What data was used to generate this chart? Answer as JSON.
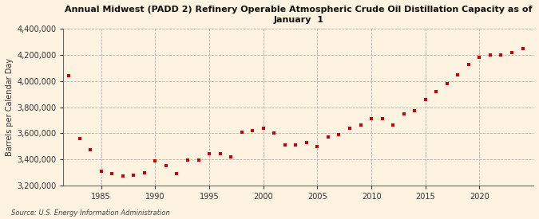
{
  "title": "Annual Midwest (PADD 2) Refinery Operable Atmospheric Crude Oil Distillation Capacity as of\nJanuary  1",
  "ylabel": "Barrels per Calendar Day",
  "source": "Source: U.S. Energy Information Administration",
  "background_color": "#fdf3e0",
  "plot_bg_color": "#fdf3e0",
  "marker_color": "#cc0000",
  "years": [
    1982,
    1983,
    1984,
    1985,
    1986,
    1987,
    1988,
    1989,
    1990,
    1991,
    1992,
    1993,
    1994,
    1995,
    1996,
    1997,
    1998,
    1999,
    2000,
    2001,
    2002,
    2003,
    2004,
    2005,
    2006,
    2007,
    2008,
    2009,
    2010,
    2011,
    2012,
    2013,
    2014,
    2015,
    2016,
    2017,
    2018,
    2019,
    2020,
    2021,
    2022,
    2023,
    2024
  ],
  "values": [
    4040000,
    3560000,
    3470000,
    3310000,
    3290000,
    3270000,
    3275000,
    3295000,
    3385000,
    3350000,
    3290000,
    3390000,
    3395000,
    3440000,
    3440000,
    3420000,
    3610000,
    3620000,
    3635000,
    3600000,
    3510000,
    3510000,
    3530000,
    3500000,
    3570000,
    3590000,
    3640000,
    3660000,
    3710000,
    3710000,
    3660000,
    3750000,
    3770000,
    3860000,
    3920000,
    3980000,
    4050000,
    4130000,
    4180000,
    4200000,
    4200000,
    4220000,
    4250000
  ],
  "ylim": [
    3200000,
    4400000
  ],
  "yticks": [
    3200000,
    3400000,
    3600000,
    3800000,
    4000000,
    4200000,
    4400000
  ],
  "xlim": [
    1981.5,
    2025
  ],
  "xticks": [
    1985,
    1990,
    1995,
    2000,
    2005,
    2010,
    2015,
    2020
  ]
}
